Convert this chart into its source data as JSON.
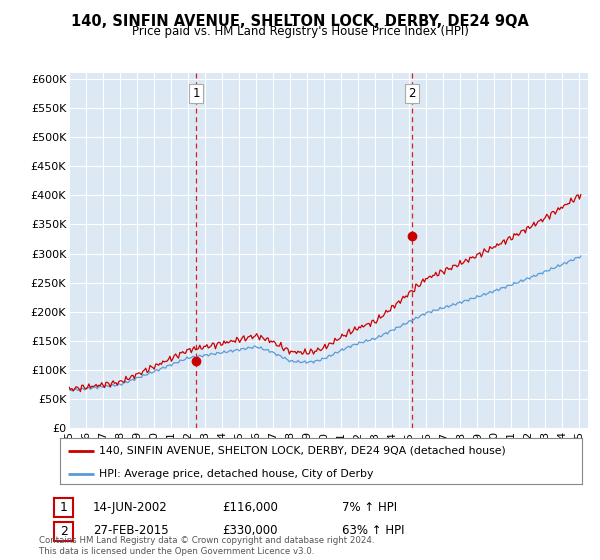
{
  "title": "140, SINFIN AVENUE, SHELTON LOCK, DERBY, DE24 9QA",
  "subtitle": "Price paid vs. HM Land Registry's House Price Index (HPI)",
  "ylabel_ticks": [
    "£0",
    "£50K",
    "£100K",
    "£150K",
    "£200K",
    "£250K",
    "£300K",
    "£350K",
    "£400K",
    "£450K",
    "£500K",
    "£550K",
    "£600K"
  ],
  "ytick_values": [
    0,
    50000,
    100000,
    150000,
    200000,
    250000,
    300000,
    350000,
    400000,
    450000,
    500000,
    550000,
    600000
  ],
  "hpi_color": "#5b9bd5",
  "price_color": "#cc0000",
  "marker_color": "#cc0000",
  "purchase1": {
    "date_x": 2002.46,
    "price": 116000,
    "label": "1"
  },
  "purchase2": {
    "date_x": 2015.15,
    "price": 330000,
    "label": "2"
  },
  "legend_line1": "140, SINFIN AVENUE, SHELTON LOCK, DERBY, DE24 9QA (detached house)",
  "legend_line2": "HPI: Average price, detached house, City of Derby",
  "annotation1_date": "14-JUN-2002",
  "annotation1_price": "£116,000",
  "annotation1_hpi": "7% ↑ HPI",
  "annotation2_date": "27-FEB-2015",
  "annotation2_price": "£330,000",
  "annotation2_hpi": "63% ↑ HPI",
  "footer": "Contains HM Land Registry data © Crown copyright and database right 2024.\nThis data is licensed under the Open Government Licence v3.0.",
  "bg_color": "#ffffff",
  "plot_bg_color": "#dce9f5",
  "grid_color": "#ffffff",
  "xmin": 1995.0,
  "xmax": 2025.5,
  "ymin": 0,
  "ymax": 600000
}
